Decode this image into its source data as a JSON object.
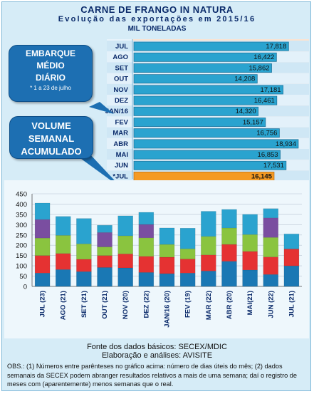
{
  "header": {
    "title": "CARNE DE FRANGO IN NATURA",
    "subtitle": "Evolução das exportações em 2015/16",
    "unit": "MIL TONELADAS"
  },
  "bubble_daily": {
    "line1": "EMBARQUE",
    "line2": "MÉDIO",
    "line3": "DIÁRIO",
    "note": "* 1 a 23 de julho"
  },
  "bubble_weekly": {
    "line1": "VOLUME",
    "line2": "SEMANAL",
    "line3": "ACUMULADO"
  },
  "footer": {
    "source": "Fonte dos dados básicos: SECEX/MDIC",
    "analysis": "Elaboração e análises: AVISITE",
    "obs": "OBS.: (1) Números entre parênteses no gráfico acima: número de dias úteis do mês; (2) dados semanais da SECEX podem abranger resultados relativos a mais de uma semana; daí o registro de meses com (aparentemente) menos semanas que o real."
  },
  "colors": {
    "bar_blue": "#2aa3cf",
    "bar_highlight": "#f59a23",
    "week1": "#1a78b4",
    "week2": "#e53232",
    "week3": "#8ac43f",
    "week4": "#7a4ea0",
    "week5": "#2aa3cf"
  },
  "chart_data": [
    {
      "type": "bar",
      "orientation": "horizontal",
      "categories": [
        "JUL",
        "AGO",
        "SET",
        "OUT",
        "NOV",
        "DEZ",
        "JAN/16",
        "FEV",
        "MAR",
        "ABR",
        "MAI",
        "JUN",
        "*JUL"
      ],
      "values": [
        17818,
        16422,
        15862,
        14208,
        17181,
        16461,
        14320,
        15157,
        16756,
        18934,
        16853,
        17531,
        16145
      ],
      "value_labels": [
        "17,818",
        "16,422",
        "15,862",
        "14,208",
        "17,181",
        "16,461",
        "14,320",
        "15,157",
        "16,756",
        "18,934",
        "16,853",
        "17,531",
        "16,145"
      ],
      "highlight_index": 12,
      "xlim": [
        0,
        20000
      ]
    },
    {
      "type": "bar",
      "stacked": true,
      "categories": [
        "JUL (23)",
        "AGO (21)",
        "SET (21)",
        "OUT (21)",
        "NOV (20)",
        "DEZ (22)",
        "JAN/16 (20)",
        "FEV (19)",
        "MAR (22)",
        "ABR (20)",
        "MAI(21)",
        "JUN (22)",
        "JUL (21)"
      ],
      "series": [
        {
          "values": [
            65,
            82,
            72,
            92,
            90,
            68,
            62,
            65,
            75,
            122,
            80,
            58,
            100
          ]
        },
        {
          "values": [
            85,
            78,
            60,
            58,
            68,
            78,
            80,
            68,
            78,
            82,
            90,
            85,
            82
          ]
        },
        {
          "values": [
            85,
            88,
            75,
            42,
            88,
            90,
            62,
            50,
            90,
            80,
            82,
            95,
            0
          ]
        },
        {
          "values": [
            90,
            0,
            0,
            70,
            0,
            65,
            0,
            0,
            0,
            0,
            0,
            95,
            0
          ]
        },
        {
          "values": [
            80,
            92,
            123,
            35,
            97,
            59,
            80,
            100,
            122,
            90,
            98,
            45,
            73
          ]
        }
      ],
      "ylim": [
        0,
        450
      ],
      "yticks": [
        0,
        50,
        100,
        150,
        200,
        250,
        300,
        350,
        400,
        450
      ],
      "grid": true
    }
  ]
}
